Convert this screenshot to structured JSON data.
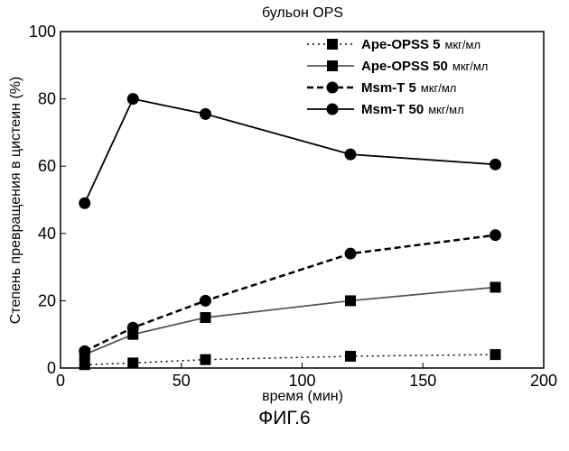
{
  "figure_caption": "ФИГ.6",
  "chart_data": {
    "type": "line",
    "title": "бульон OPS",
    "xlabel": "время (мин)",
    "ylabel": "Степень превращения в цистеин (%)",
    "xlim": [
      0,
      200
    ],
    "ylim": [
      0,
      100
    ],
    "xticks": [
      0,
      50,
      100,
      150,
      200
    ],
    "yticks": [
      0,
      20,
      40,
      60,
      80,
      100
    ],
    "legend_position": "top-right",
    "series": [
      {
        "name": "Ape-OPSS 5",
        "unit": "мкг/мл",
        "marker": "square",
        "line": "dotted",
        "x": [
          10,
          30,
          60,
          120,
          180
        ],
        "y": [
          1,
          1.5,
          2.5,
          3.5,
          4
        ]
      },
      {
        "name": "Ape-OPSS 50",
        "unit": "мкг/мл",
        "marker": "square",
        "line": "solid",
        "x": [
          10,
          30,
          60,
          120,
          180
        ],
        "y": [
          4,
          10,
          15,
          20,
          24
        ]
      },
      {
        "name": "Msm-T 5",
        "unit": "мкг/мл",
        "marker": "circle",
        "line": "dashed",
        "x": [
          10,
          30,
          60,
          120,
          180
        ],
        "y": [
          5,
          12,
          20,
          34,
          39.5
        ]
      },
      {
        "name": "Msm-T 50",
        "unit": "мкг/мл",
        "marker": "circle",
        "line": "solid",
        "x": [
          10,
          30,
          60,
          120,
          180
        ],
        "y": [
          49,
          80,
          75.5,
          63.5,
          60.5
        ]
      }
    ]
  }
}
